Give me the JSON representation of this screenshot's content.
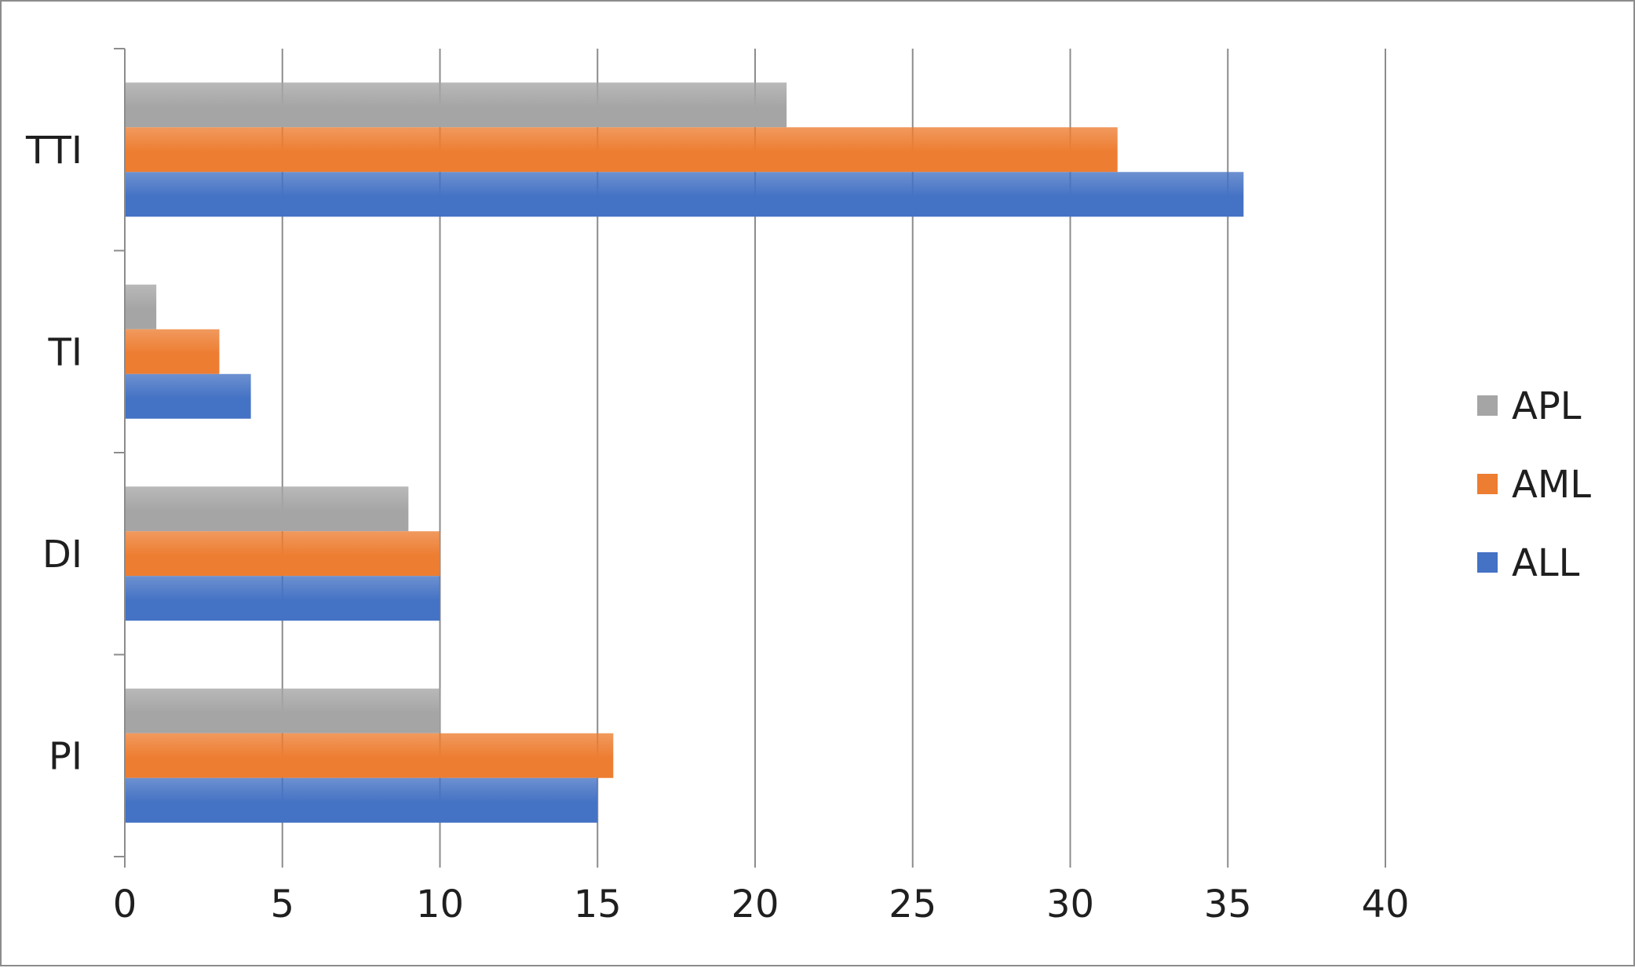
{
  "chart_data": {
    "type": "bar",
    "orientation": "horizontal",
    "categories": [
      "TTI",
      "TI",
      "DI",
      "PI"
    ],
    "series": [
      {
        "name": "APL",
        "values": [
          21,
          1,
          9,
          10
        ],
        "color": "#a5a5a5"
      },
      {
        "name": "AML",
        "values": [
          31.5,
          3,
          10,
          15.5
        ],
        "color": "#ed7d31"
      },
      {
        "name": "ALL",
        "values": [
          35.5,
          4,
          10,
          15
        ],
        "color": "#4472c4"
      }
    ],
    "xlim": [
      0,
      40
    ],
    "xticks": [
      "0",
      "5",
      "10",
      "15",
      "20",
      "25",
      "30",
      "35",
      "40"
    ],
    "grid": true,
    "legend_position": "right",
    "title": "",
    "xlabel": "",
    "ylabel": ""
  }
}
